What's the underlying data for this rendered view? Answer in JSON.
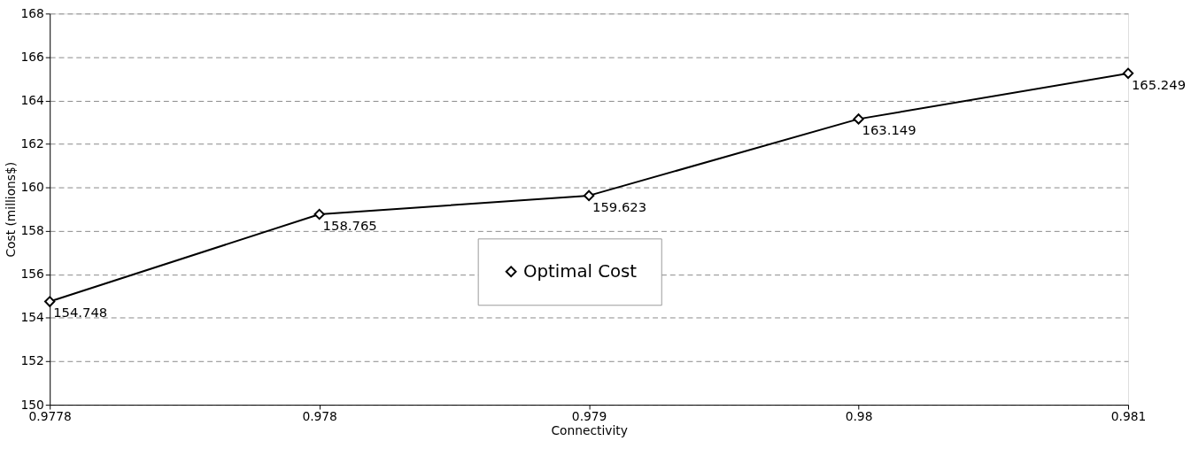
{
  "chart_data": {
    "type": "line",
    "xlabel": "Connectivity",
    "ylabel": "Cost (millions$)",
    "categories": [
      "0.9778",
      "0.978",
      "0.979",
      "0.98",
      "0.981"
    ],
    "series": [
      {
        "name": "Optimal Cost",
        "color": "#000000",
        "values": [
          154.748,
          158.765,
          159.623,
          163.149,
          165.249
        ]
      }
    ],
    "ylim": [
      150,
      168
    ],
    "yticks": [
      150,
      152,
      154,
      156,
      158,
      160,
      162,
      164,
      166,
      168
    ],
    "grid": "y",
    "legend": "bottom",
    "marker": "diamond",
    "line_style": "solid",
    "data_labels": true
  }
}
